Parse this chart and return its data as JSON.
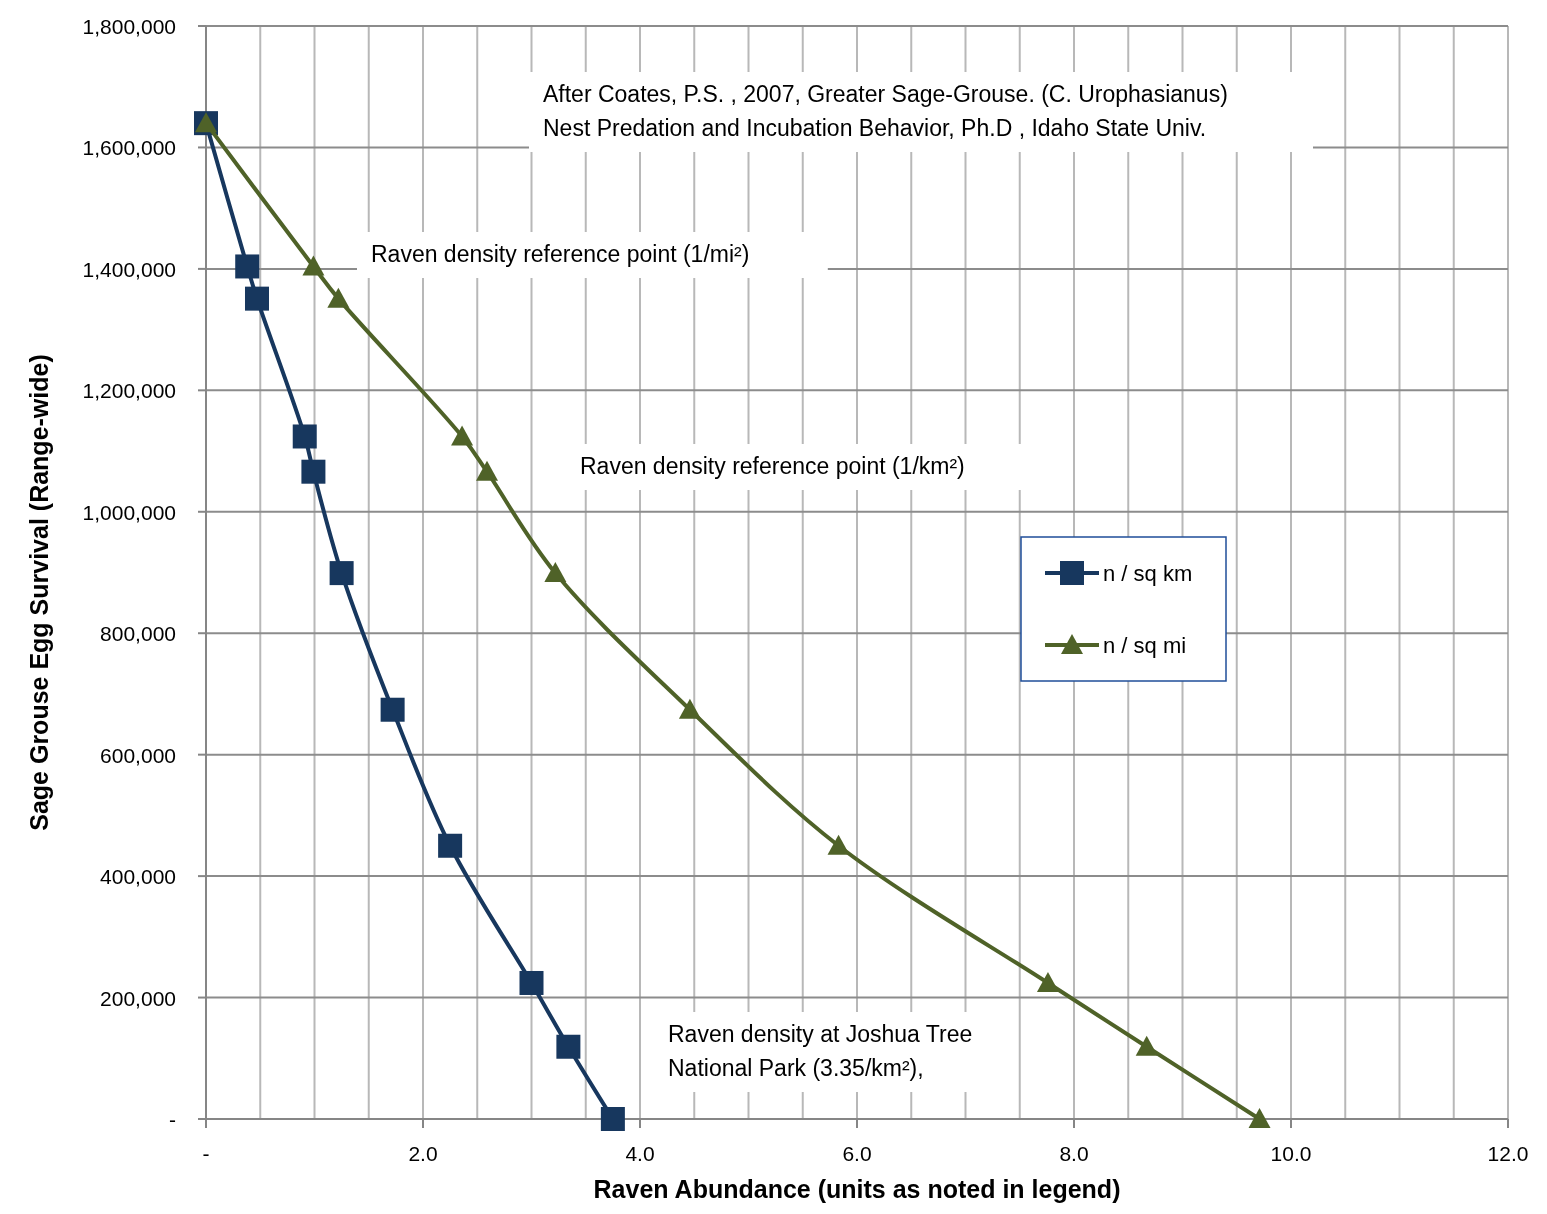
{
  "chart_data": {
    "type": "line",
    "xlabel": "Raven Abundance (units as noted in legend)",
    "ylabel": "Sage Grouse  Egg Survival (Range-wide)",
    "xlim": [
      0,
      12
    ],
    "ylim": [
      0,
      1800000
    ],
    "xticks": [
      {
        "value": 0,
        "label": "-"
      },
      {
        "value": 0.5,
        "label": null
      },
      {
        "value": 1,
        "label": null
      },
      {
        "value": 1.5,
        "label": null
      },
      {
        "value": 2,
        "label": "2.0"
      },
      {
        "value": 2.5,
        "label": null
      },
      {
        "value": 3,
        "label": null
      },
      {
        "value": 3.5,
        "label": null
      },
      {
        "value": 4,
        "label": "4.0"
      },
      {
        "value": 4.5,
        "label": null
      },
      {
        "value": 5,
        "label": null
      },
      {
        "value": 5.5,
        "label": null
      },
      {
        "value": 6,
        "label": "6.0"
      },
      {
        "value": 6.5,
        "label": null
      },
      {
        "value": 7,
        "label": null
      },
      {
        "value": 7.5,
        "label": null
      },
      {
        "value": 8,
        "label": "8.0"
      },
      {
        "value": 8.5,
        "label": null
      },
      {
        "value": 9,
        "label": null
      },
      {
        "value": 9.5,
        "label": null
      },
      {
        "value": 10,
        "label": "10.0"
      },
      {
        "value": 10.5,
        "label": null
      },
      {
        "value": 11,
        "label": null
      },
      {
        "value": 11.5,
        "label": null
      },
      {
        "value": 12,
        "label": "12.0"
      }
    ],
    "yticks": [
      {
        "value": 0,
        "label": "-"
      },
      {
        "value": 200000,
        "label": "200,000"
      },
      {
        "value": 400000,
        "label": "400,000"
      },
      {
        "value": 600000,
        "label": "600,000"
      },
      {
        "value": 800000,
        "label": "800,000"
      },
      {
        "value": 1000000,
        "label": "1,000,000"
      },
      {
        "value": 1200000,
        "label": "1,200,000"
      },
      {
        "value": 1400000,
        "label": "1,400,000"
      },
      {
        "value": 1600000,
        "label": "1,600,000"
      },
      {
        "value": 1800000,
        "label": "1,800,000"
      }
    ],
    "grid": true,
    "legend": "right",
    "series": [
      {
        "name": "n / sq km",
        "color": "#17375e",
        "marker": "square",
        "x": [
          0,
          0.38,
          0.47,
          0.91,
          0.99,
          1.25,
          1.72,
          2.25,
          3.0,
          3.34,
          3.75
        ],
        "values": [
          1640000,
          1404000,
          1351000,
          1124000,
          1066000,
          899000,
          674000,
          450000,
          224000,
          119000,
          0
        ]
      },
      {
        "name": "n / sq mi",
        "color": "#4f6228",
        "marker": "triangle",
        "x": [
          0,
          0.99,
          1.22,
          2.36,
          2.59,
          3.22,
          4.46,
          5.83,
          7.76,
          8.67,
          9.71
        ],
        "values": [
          1640000,
          1404000,
          1351000,
          1124000,
          1066000,
          899000,
          674000,
          450000,
          224000,
          119000,
          0
        ]
      }
    ],
    "annotations": [
      "After Coates, P.S. , 2007, Greater Sage-Grouse. (C. Urophasianus)\nNest Predation and Incubation Behavior, Ph.D , Idaho State Univ.",
      "Raven density reference  point (1/mi²)",
      "Raven density reference  point (1/km²)",
      "Raven density at Joshua Tree\nNational Park (3.35/km²),"
    ]
  }
}
